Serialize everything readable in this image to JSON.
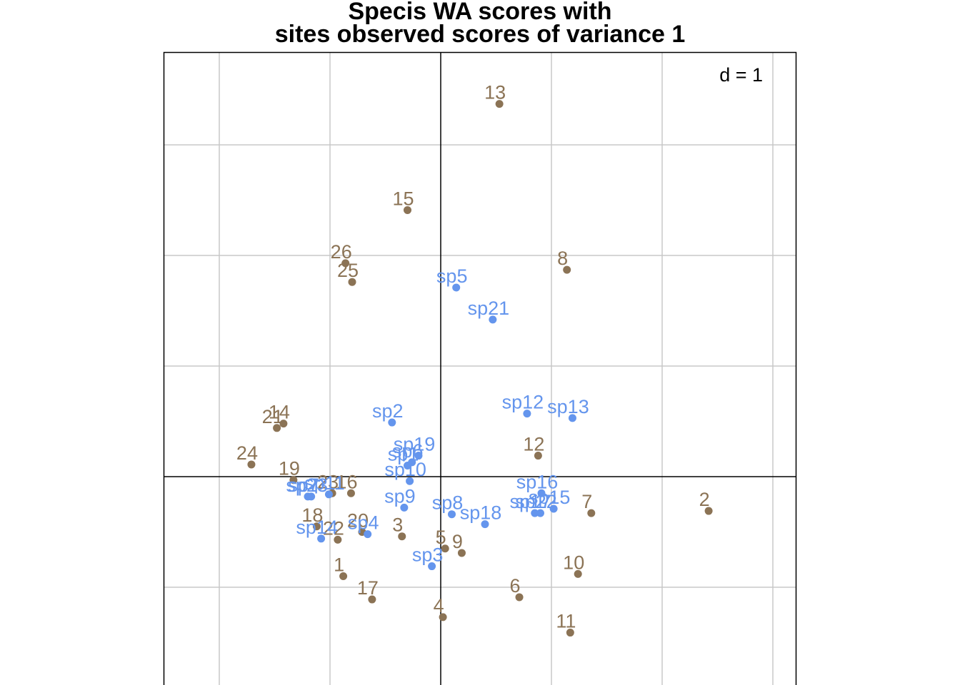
{
  "title_line1": "Specis WA scores with",
  "title_line2": "sites observed scores of variance 1",
  "scale_label": "d = 1",
  "colors": {
    "sites": "#8B7355",
    "species": "#6495ED",
    "grid": "#C8C8C8",
    "axis": "#000000"
  },
  "chart_data": {
    "type": "scatter",
    "title": "Specis WA scores with sites observed scores of variance 1",
    "xlim": [
      -2.5,
      3.2
    ],
    "ylim": [
      -1.9,
      3.85
    ],
    "grid": true,
    "grid_step": 1,
    "series": [
      {
        "points": [
          {
            "label": "1",
            "x": -0.88,
            "y": -0.9
          },
          {
            "label": "2",
            "x": 2.42,
            "y": -0.31
          },
          {
            "label": "4",
            "x": 0.02,
            "y": -1.27
          },
          {
            "label": "5",
            "x": 0.04,
            "y": -0.65
          },
          {
            "label": "6",
            "x": 0.71,
            "y": -1.09
          },
          {
            "label": "7",
            "x": 1.36,
            "y": -0.33
          },
          {
            "label": "8",
            "x": 1.14,
            "y": 1.87
          },
          {
            "label": "9",
            "x": 0.19,
            "y": -0.69
          },
          {
            "label": "10",
            "x": 1.24,
            "y": -0.88
          },
          {
            "label": "11",
            "x": 1.17,
            "y": -1.41
          },
          {
            "label": "12",
            "x": 0.88,
            "y": 0.19
          },
          {
            "label": "13",
            "x": 0.53,
            "y": 3.37
          },
          {
            "label": "14",
            "x": -1.42,
            "y": 0.48
          },
          {
            "label": "15",
            "x": -0.3,
            "y": 2.41
          },
          {
            "label": "16",
            "x": -0.81,
            "y": -0.15
          },
          {
            "label": "17",
            "x": -0.62,
            "y": -1.11
          },
          {
            "label": "18",
            "x": -1.12,
            "y": -0.45
          },
          {
            "label": "19",
            "x": -1.33,
            "y": -0.03
          },
          {
            "label": "20",
            "x": -0.71,
            "y": -0.5
          },
          {
            "label": "21",
            "x": -1.48,
            "y": 0.44
          },
          {
            "label": "22",
            "x": -0.93,
            "y": -0.57
          },
          {
            "label": "23",
            "x": -0.98,
            "y": -0.15
          },
          {
            "label": "24",
            "x": -1.71,
            "y": 0.11
          },
          {
            "label": "25",
            "x": -0.8,
            "y": 1.76
          },
          {
            "label": "26",
            "x": -0.86,
            "y": 1.93
          },
          {
            "label": "3",
            "x": -0.35,
            "y": -0.54
          }
        ]
      },
      {
        "points": [
          {
            "label": "sp1",
            "x": -0.3,
            "y": 0.1
          },
          {
            "label": "sp2",
            "x": -0.44,
            "y": 0.49
          },
          {
            "label": "sp3",
            "x": -0.08,
            "y": -0.81
          },
          {
            "label": "sp4",
            "x": -0.66,
            "y": -0.52
          },
          {
            "label": "sp5",
            "x": 0.14,
            "y": 1.71
          },
          {
            "label": "sp6",
            "x": -0.26,
            "y": 0.13
          },
          {
            "label": "sp7",
            "x": -1.2,
            "y": -0.18
          },
          {
            "label": "sp8",
            "x": 0.1,
            "y": -0.34
          },
          {
            "label": "sp9",
            "x": -0.33,
            "y": -0.28
          },
          {
            "label": "sp10",
            "x": -0.28,
            "y": -0.04
          },
          {
            "label": "sp11",
            "x": -1.01,
            "y": -0.16
          },
          {
            "label": "sp12",
            "x": 0.78,
            "y": 0.57
          },
          {
            "label": "sp13",
            "x": 1.19,
            "y": 0.53
          },
          {
            "label": "sp14",
            "x": -1.08,
            "y": -0.56
          },
          {
            "label": "sp15",
            "x": 1.02,
            "y": -0.29
          },
          {
            "label": "sp16",
            "x": 0.91,
            "y": -0.15
          },
          {
            "label": "sp17",
            "x": 0.85,
            "y": -0.33
          },
          {
            "label": "sp18",
            "x": 0.4,
            "y": -0.43
          },
          {
            "label": "sp19",
            "x": -0.2,
            "y": 0.19
          },
          {
            "label": "sp21",
            "x": 0.47,
            "y": 1.42
          },
          {
            "label": "sp22",
            "x": 0.9,
            "y": -0.33
          },
          {
            "label": "sp23",
            "x": -1.17,
            "y": -0.18
          }
        ]
      }
    ]
  }
}
